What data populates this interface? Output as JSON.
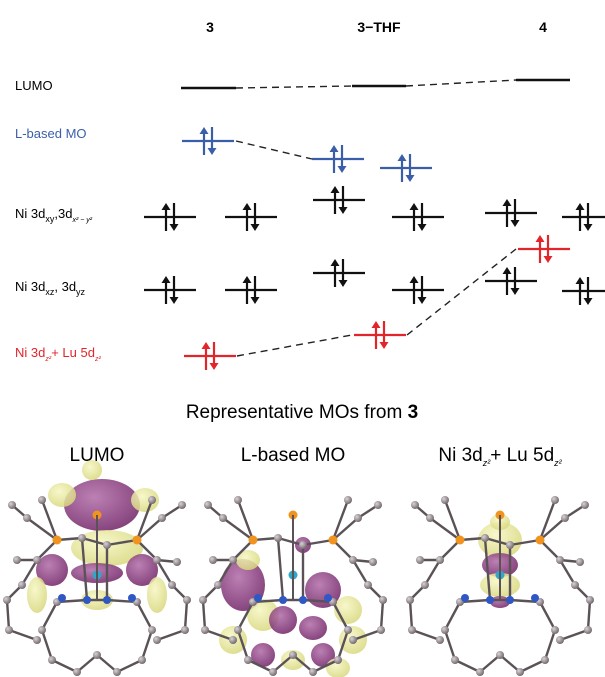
{
  "columns": [
    "3",
    "3−THF",
    "4"
  ],
  "row_labels": {
    "lumo": "LUMO",
    "lbased": "L-based MO",
    "ni_dxy": {
      "prefix": "Ni 3d",
      "sub1": "xy",
      "mid": ",3d",
      "sub2": "x² − y²"
    },
    "ni_dxz": {
      "prefix": "Ni 3d",
      "sub1": "xz",
      "mid": ", 3d",
      "sub2": "yz"
    },
    "ni_dz2": {
      "prefix": "Ni 3d",
      "sub1": "z²",
      "mid": "+ Lu 5d",
      "sub2": "z²"
    }
  },
  "colors": {
    "black": "#111111",
    "blue": "#3a5fa8",
    "red": "#e2242b",
    "dash": "#222222"
  },
  "bottom": {
    "title_prefix": "Representative MOs from ",
    "title_bold": "3",
    "panels": [
      {
        "title": "LUMO"
      },
      {
        "title": "L-based MO"
      },
      {
        "title_prefix": "Ni 3d",
        "sub1": "z²",
        "mid": "+ Lu 5d",
        "sub2": "z²"
      }
    ]
  }
}
